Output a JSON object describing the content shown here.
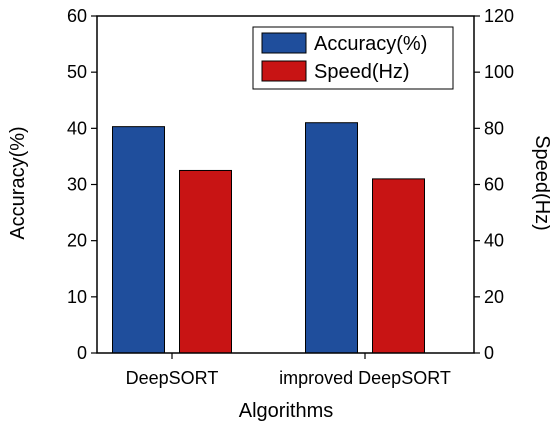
{
  "chart_data": {
    "type": "bar",
    "title": "",
    "xlabel": "Algorithms",
    "ylabel": "Accuracy(%)",
    "y2label": "Speed(Hz)",
    "categories": [
      "DeepSORT",
      "improved DeepSORT"
    ],
    "ylim": [
      0,
      60
    ],
    "y2lim": [
      0,
      120
    ],
    "yticks": [
      0,
      10,
      20,
      30,
      40,
      50,
      60
    ],
    "y2ticks": [
      0,
      20,
      40,
      60,
      80,
      100,
      120
    ],
    "grid": false,
    "legend_position": "top-right",
    "series": [
      {
        "name": "Accuracy(%)",
        "axis": "left",
        "color": "#1f4e9c",
        "values": [
          40.3,
          41.0
        ]
      },
      {
        "name": "Speed(Hz)",
        "axis": "right",
        "color": "#c81414",
        "values": [
          65,
          62
        ]
      }
    ]
  }
}
